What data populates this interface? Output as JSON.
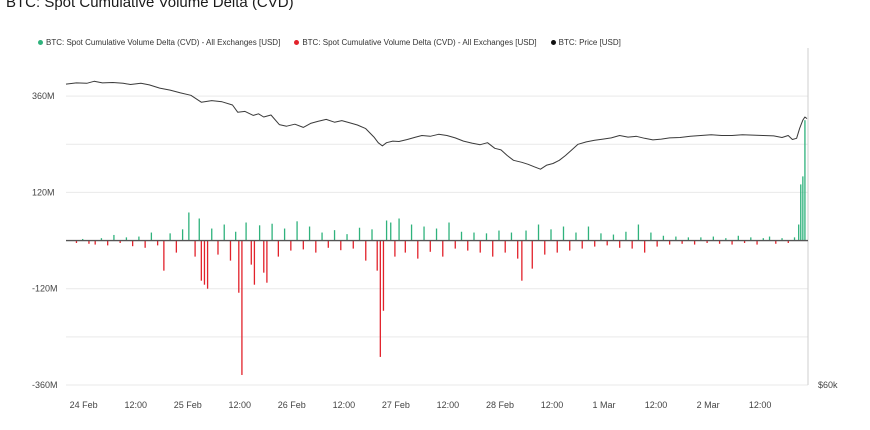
{
  "title": "BTC: Spot Cumulative Volume Delta (CVD)",
  "colors": {
    "positive": "#2fb27c",
    "negative": "#e2222b",
    "price": "#3a3a3a",
    "grid": "#e9e9e9",
    "axis": "#777777"
  },
  "chart_data": {
    "type": "bar",
    "title": "BTC: Spot Cumulative Volume Delta (CVD)",
    "legend": {
      "placement": "top-left",
      "entries": [
        {
          "name": "BTC: Spot Cumulative Volume Delta (CVD) - All Exchanges [USD]",
          "color": "#2fb27c"
        },
        {
          "name": "BTC: Spot Cumulative Volume Delta (CVD) - All Exchanges [USD]",
          "color": "#e2222b"
        },
        {
          "name": "BTC: Price [USD]",
          "color": "#111111"
        }
      ]
    },
    "grid": true,
    "ylim": [
      -360,
      480
    ],
    "y_ticks": [
      {
        "value": 360,
        "label": "360M"
      },
      {
        "value": 120,
        "label": "120M"
      },
      {
        "value": -120,
        "label": "-120M"
      },
      {
        "value": -360,
        "label": "-360M"
      }
    ],
    "right_axis_label": "$60k",
    "xlim": [
      0,
      7.13
    ],
    "x_ticks": [
      {
        "value": 0.17,
        "label": "24 Feb"
      },
      {
        "value": 0.67,
        "label": "12:00"
      },
      {
        "value": 1.17,
        "label": "25 Feb"
      },
      {
        "value": 1.67,
        "label": "12:00"
      },
      {
        "value": 2.17,
        "label": "26 Feb"
      },
      {
        "value": 2.67,
        "label": "12:00"
      },
      {
        "value": 3.17,
        "label": "27 Feb"
      },
      {
        "value": 3.67,
        "label": "12:00"
      },
      {
        "value": 4.17,
        "label": "28 Feb"
      },
      {
        "value": 4.67,
        "label": "12:00"
      },
      {
        "value": 5.17,
        "label": "1 Mar"
      },
      {
        "value": 5.67,
        "label": "12:00"
      },
      {
        "value": 6.17,
        "label": "2 Mar"
      },
      {
        "value": 6.67,
        "label": "12:00"
      }
    ],
    "cvd_bars": [
      {
        "x": 0.1,
        "value": -6
      },
      {
        "x": 0.16,
        "value": 4
      },
      {
        "x": 0.22,
        "value": -8
      },
      {
        "x": 0.28,
        "value": -10
      },
      {
        "x": 0.34,
        "value": 6
      },
      {
        "x": 0.4,
        "value": -12
      },
      {
        "x": 0.46,
        "value": 14
      },
      {
        "x": 0.52,
        "value": -6
      },
      {
        "x": 0.58,
        "value": 8
      },
      {
        "x": 0.64,
        "value": -14
      },
      {
        "x": 0.7,
        "value": 10
      },
      {
        "x": 0.76,
        "value": -18
      },
      {
        "x": 0.82,
        "value": 20
      },
      {
        "x": 0.88,
        "value": -12
      },
      {
        "x": 0.94,
        "value": -75
      },
      {
        "x": 1.0,
        "value": 18
      },
      {
        "x": 1.06,
        "value": -30
      },
      {
        "x": 1.12,
        "value": 28
      },
      {
        "x": 1.18,
        "value": 70
      },
      {
        "x": 1.24,
        "value": -40
      },
      {
        "x": 1.28,
        "value": 55
      },
      {
        "x": 1.3,
        "value": -100
      },
      {
        "x": 1.33,
        "value": -110
      },
      {
        "x": 1.36,
        "value": -120
      },
      {
        "x": 1.4,
        "value": 30
      },
      {
        "x": 1.46,
        "value": -35
      },
      {
        "x": 1.52,
        "value": 40
      },
      {
        "x": 1.58,
        "value": -50
      },
      {
        "x": 1.63,
        "value": 22
      },
      {
        "x": 1.66,
        "value": -130
      },
      {
        "x": 1.69,
        "value": -335
      },
      {
        "x": 1.73,
        "value": 45
      },
      {
        "x": 1.78,
        "value": -60
      },
      {
        "x": 1.81,
        "value": -110
      },
      {
        "x": 1.86,
        "value": 38
      },
      {
        "x": 1.9,
        "value": -80
      },
      {
        "x": 1.93,
        "value": -105
      },
      {
        "x": 1.98,
        "value": 42
      },
      {
        "x": 2.04,
        "value": -40
      },
      {
        "x": 2.1,
        "value": 30
      },
      {
        "x": 2.16,
        "value": -25
      },
      {
        "x": 2.22,
        "value": 48
      },
      {
        "x": 2.28,
        "value": -22
      },
      {
        "x": 2.34,
        "value": 35
      },
      {
        "x": 2.4,
        "value": -30
      },
      {
        "x": 2.46,
        "value": 20
      },
      {
        "x": 2.52,
        "value": -18
      },
      {
        "x": 2.58,
        "value": 26
      },
      {
        "x": 2.64,
        "value": -24
      },
      {
        "x": 2.7,
        "value": 16
      },
      {
        "x": 2.76,
        "value": -20
      },
      {
        "x": 2.82,
        "value": 32
      },
      {
        "x": 2.88,
        "value": -50
      },
      {
        "x": 2.94,
        "value": 28
      },
      {
        "x": 2.99,
        "value": -75
      },
      {
        "x": 3.02,
        "value": -290
      },
      {
        "x": 3.05,
        "value": -175
      },
      {
        "x": 3.08,
        "value": 50
      },
      {
        "x": 3.12,
        "value": 45
      },
      {
        "x": 3.16,
        "value": -40
      },
      {
        "x": 3.2,
        "value": 55
      },
      {
        "x": 3.26,
        "value": -30
      },
      {
        "x": 3.32,
        "value": 40
      },
      {
        "x": 3.38,
        "value": -45
      },
      {
        "x": 3.44,
        "value": 35
      },
      {
        "x": 3.5,
        "value": -28
      },
      {
        "x": 3.56,
        "value": 30
      },
      {
        "x": 3.62,
        "value": -40
      },
      {
        "x": 3.68,
        "value": 45
      },
      {
        "x": 3.74,
        "value": -20
      },
      {
        "x": 3.8,
        "value": 22
      },
      {
        "x": 3.86,
        "value": -25
      },
      {
        "x": 3.92,
        "value": 20
      },
      {
        "x": 3.98,
        "value": -30
      },
      {
        "x": 4.04,
        "value": 18
      },
      {
        "x": 4.1,
        "value": -40
      },
      {
        "x": 4.16,
        "value": 25
      },
      {
        "x": 4.22,
        "value": -30
      },
      {
        "x": 4.28,
        "value": 20
      },
      {
        "x": 4.34,
        "value": -45
      },
      {
        "x": 4.38,
        "value": -100
      },
      {
        "x": 4.42,
        "value": 25
      },
      {
        "x": 4.48,
        "value": -70
      },
      {
        "x": 4.54,
        "value": 40
      },
      {
        "x": 4.6,
        "value": -35
      },
      {
        "x": 4.66,
        "value": 28
      },
      {
        "x": 4.72,
        "value": -30
      },
      {
        "x": 4.78,
        "value": 35
      },
      {
        "x": 4.84,
        "value": -25
      },
      {
        "x": 4.9,
        "value": 20
      },
      {
        "x": 4.96,
        "value": -20
      },
      {
        "x": 5.02,
        "value": 35
      },
      {
        "x": 5.08,
        "value": -15
      },
      {
        "x": 5.14,
        "value": 18
      },
      {
        "x": 5.2,
        "value": -12
      },
      {
        "x": 5.26,
        "value": 15
      },
      {
        "x": 5.32,
        "value": -18
      },
      {
        "x": 5.38,
        "value": 22
      },
      {
        "x": 5.44,
        "value": -20
      },
      {
        "x": 5.5,
        "value": 40
      },
      {
        "x": 5.56,
        "value": -30
      },
      {
        "x": 5.62,
        "value": 20
      },
      {
        "x": 5.68,
        "value": -15
      },
      {
        "x": 5.74,
        "value": 12
      },
      {
        "x": 5.8,
        "value": -10
      },
      {
        "x": 5.86,
        "value": 10
      },
      {
        "x": 5.92,
        "value": -8
      },
      {
        "x": 5.98,
        "value": 8
      },
      {
        "x": 6.04,
        "value": -10
      },
      {
        "x": 6.1,
        "value": 8
      },
      {
        "x": 6.16,
        "value": -6
      },
      {
        "x": 6.22,
        "value": 10
      },
      {
        "x": 6.28,
        "value": -8
      },
      {
        "x": 6.34,
        "value": 6
      },
      {
        "x": 6.4,
        "value": -10
      },
      {
        "x": 6.46,
        "value": 12
      },
      {
        "x": 6.52,
        "value": -6
      },
      {
        "x": 6.58,
        "value": 8
      },
      {
        "x": 6.64,
        "value": -10
      },
      {
        "x": 6.7,
        "value": 6
      },
      {
        "x": 6.76,
        "value": 10
      },
      {
        "x": 6.82,
        "value": -8
      },
      {
        "x": 6.88,
        "value": 6
      },
      {
        "x": 6.94,
        "value": -6
      },
      {
        "x": 7.0,
        "value": 8
      },
      {
        "x": 7.04,
        "value": 40
      },
      {
        "x": 7.06,
        "value": 140
      },
      {
        "x": 7.08,
        "value": 160
      },
      {
        "x": 7.1,
        "value": 300
      }
    ],
    "price_series": {
      "name": "BTC: Price [USD]",
      "points": [
        {
          "x": 0.0,
          "y": 390
        },
        {
          "x": 0.1,
          "y": 393
        },
        {
          "x": 0.2,
          "y": 392
        },
        {
          "x": 0.27,
          "y": 397
        },
        {
          "x": 0.35,
          "y": 393
        },
        {
          "x": 0.45,
          "y": 394
        },
        {
          "x": 0.55,
          "y": 392
        },
        {
          "x": 0.62,
          "y": 389
        },
        {
          "x": 0.72,
          "y": 392
        },
        {
          "x": 0.8,
          "y": 388
        },
        {
          "x": 0.9,
          "y": 380
        },
        {
          "x": 1.0,
          "y": 375
        },
        {
          "x": 1.1,
          "y": 368
        },
        {
          "x": 1.2,
          "y": 362
        },
        {
          "x": 1.3,
          "y": 345
        },
        {
          "x": 1.4,
          "y": 349
        },
        {
          "x": 1.5,
          "y": 346
        },
        {
          "x": 1.6,
          "y": 338
        },
        {
          "x": 1.65,
          "y": 320
        },
        {
          "x": 1.72,
          "y": 322
        },
        {
          "x": 1.8,
          "y": 312
        },
        {
          "x": 1.85,
          "y": 316
        },
        {
          "x": 1.9,
          "y": 308
        },
        {
          "x": 1.97,
          "y": 313
        },
        {
          "x": 2.05,
          "y": 289
        },
        {
          "x": 2.12,
          "y": 285
        },
        {
          "x": 2.2,
          "y": 290
        },
        {
          "x": 2.28,
          "y": 282
        },
        {
          "x": 2.35,
          "y": 292
        },
        {
          "x": 2.42,
          "y": 297
        },
        {
          "x": 2.5,
          "y": 302
        },
        {
          "x": 2.58,
          "y": 295
        },
        {
          "x": 2.65,
          "y": 299
        },
        {
          "x": 2.72,
          "y": 294
        },
        {
          "x": 2.8,
          "y": 288
        },
        {
          "x": 2.88,
          "y": 279
        },
        {
          "x": 2.96,
          "y": 258
        },
        {
          "x": 3.0,
          "y": 244
        },
        {
          "x": 3.04,
          "y": 236
        },
        {
          "x": 3.08,
          "y": 244
        },
        {
          "x": 3.14,
          "y": 248
        },
        {
          "x": 3.2,
          "y": 247
        },
        {
          "x": 3.28,
          "y": 252
        },
        {
          "x": 3.36,
          "y": 258
        },
        {
          "x": 3.42,
          "y": 262
        },
        {
          "x": 3.5,
          "y": 260
        },
        {
          "x": 3.58,
          "y": 265
        },
        {
          "x": 3.66,
          "y": 262
        },
        {
          "x": 3.74,
          "y": 256
        },
        {
          "x": 3.82,
          "y": 248
        },
        {
          "x": 3.9,
          "y": 243
        },
        {
          "x": 3.98,
          "y": 239
        },
        {
          "x": 4.05,
          "y": 244
        },
        {
          "x": 4.12,
          "y": 230
        },
        {
          "x": 4.18,
          "y": 226
        },
        {
          "x": 4.24,
          "y": 212
        },
        {
          "x": 4.3,
          "y": 200
        },
        {
          "x": 4.38,
          "y": 195
        },
        {
          "x": 4.44,
          "y": 190
        },
        {
          "x": 4.5,
          "y": 184
        },
        {
          "x": 4.56,
          "y": 178
        },
        {
          "x": 4.62,
          "y": 188
        },
        {
          "x": 4.68,
          "y": 192
        },
        {
          "x": 4.74,
          "y": 200
        },
        {
          "x": 4.8,
          "y": 212
        },
        {
          "x": 4.86,
          "y": 226
        },
        {
          "x": 4.92,
          "y": 240
        },
        {
          "x": 5.0,
          "y": 246
        },
        {
          "x": 5.08,
          "y": 250
        },
        {
          "x": 5.16,
          "y": 253
        },
        {
          "x": 5.24,
          "y": 256
        },
        {
          "x": 5.32,
          "y": 262
        },
        {
          "x": 5.4,
          "y": 258
        },
        {
          "x": 5.48,
          "y": 260
        },
        {
          "x": 5.56,
          "y": 255
        },
        {
          "x": 5.64,
          "y": 251
        },
        {
          "x": 5.72,
          "y": 253
        },
        {
          "x": 5.8,
          "y": 256
        },
        {
          "x": 5.9,
          "y": 257
        },
        {
          "x": 6.0,
          "y": 260
        },
        {
          "x": 6.1,
          "y": 262
        },
        {
          "x": 6.2,
          "y": 264
        },
        {
          "x": 6.3,
          "y": 262
        },
        {
          "x": 6.4,
          "y": 262
        },
        {
          "x": 6.5,
          "y": 264
        },
        {
          "x": 6.6,
          "y": 263
        },
        {
          "x": 6.7,
          "y": 262
        },
        {
          "x": 6.8,
          "y": 261
        },
        {
          "x": 6.88,
          "y": 257
        },
        {
          "x": 6.94,
          "y": 262
        },
        {
          "x": 6.98,
          "y": 252
        },
        {
          "x": 7.02,
          "y": 255
        },
        {
          "x": 7.05,
          "y": 280
        },
        {
          "x": 7.08,
          "y": 300
        },
        {
          "x": 7.1,
          "y": 308
        },
        {
          "x": 7.12,
          "y": 304
        }
      ]
    }
  }
}
